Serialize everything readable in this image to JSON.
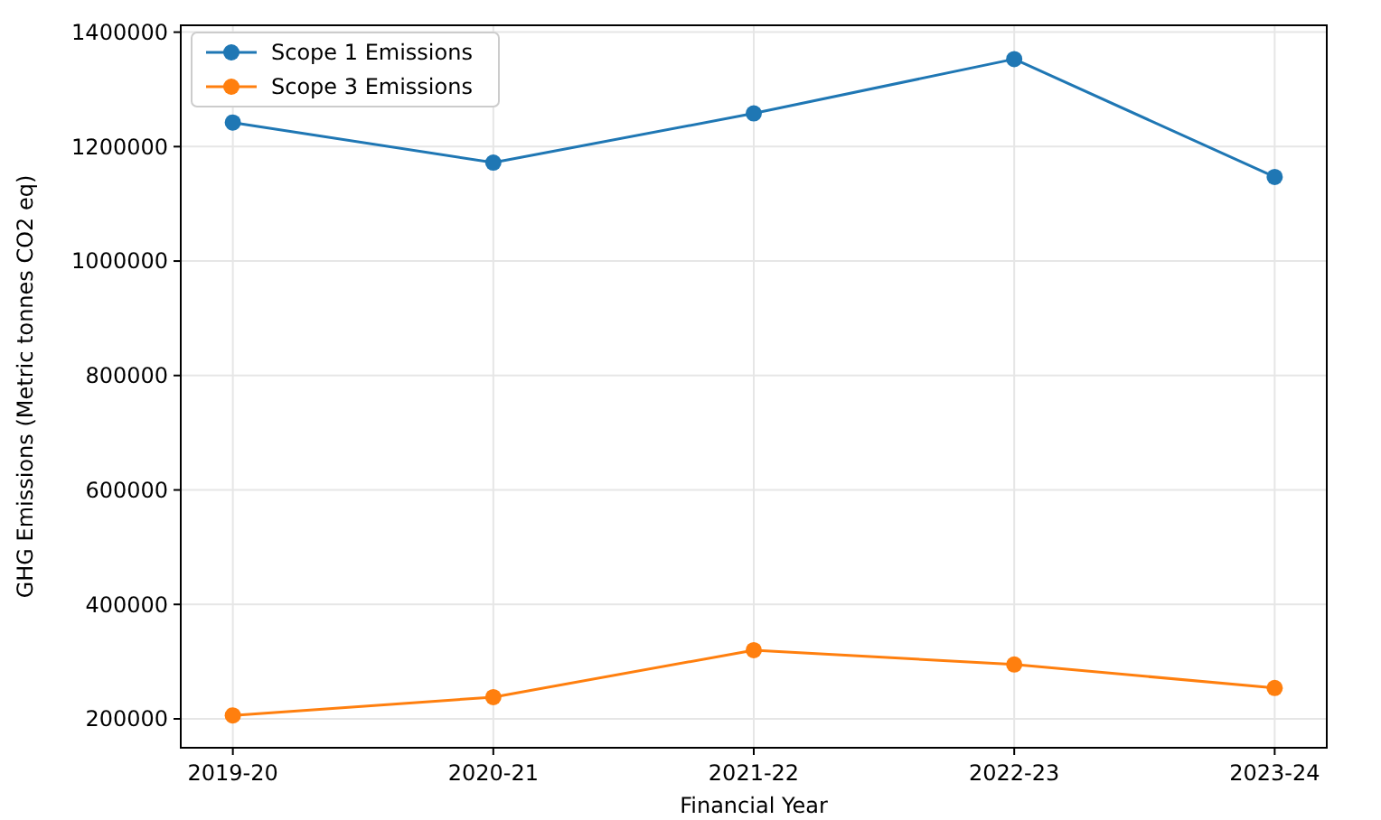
{
  "chart_data": {
    "type": "line",
    "xlabel": "Financial Year",
    "ylabel": "GHG Emissions (Metric tonnes CO2 eq)",
    "categories": [
      "2019-20",
      "2020-21",
      "2021-22",
      "2022-23",
      "2023-24"
    ],
    "series": [
      {
        "name": "Scope 1 Emissions",
        "color": "#1f77b4",
        "values": [
          1242000,
          1172000,
          1258000,
          1353000,
          1147000
        ]
      },
      {
        "name": "Scope 3 Emissions",
        "color": "#ff7f0e",
        "values": [
          206000,
          238000,
          320000,
          295000,
          254000
        ]
      }
    ],
    "ylim": [
      149500,
      1412000
    ],
    "yticks": [
      200000,
      400000,
      600000,
      800000,
      1000000,
      1200000,
      1400000
    ],
    "grid": true,
    "legend": "top left",
    "marker": "circle",
    "line_style": "solid"
  }
}
